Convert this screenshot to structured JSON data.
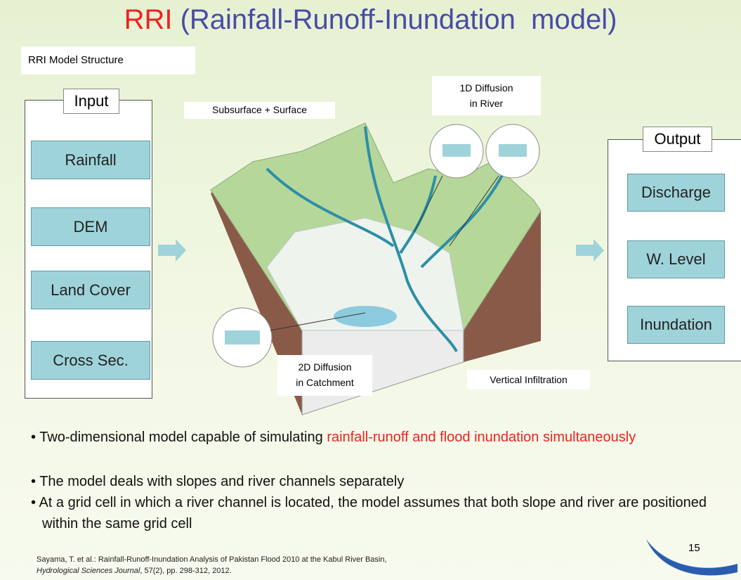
{
  "title": {
    "acronym": "RRI",
    "rest": "(Rainfall-Runoff-Inundation  model)"
  },
  "structure_label": "RRI Model Structure",
  "input": {
    "label": "Input",
    "items": [
      "Rainfall",
      "DEM",
      "Land Cover",
      "Cross Sec."
    ]
  },
  "output": {
    "label": "Output",
    "items": [
      "Discharge",
      "W. Level",
      "Inundation"
    ]
  },
  "diagram": {
    "surface": "Subsurface + Surface",
    "river": [
      "1D Diffusion",
      "in River"
    ],
    "catchment": [
      "2D Diffusion",
      "in Catchment"
    ],
    "infiltration": "Vertical Infiltration"
  },
  "bullets": [
    {
      "text": "Two-dimensional model capable of simulating",
      "highlight": "rainfall-runoff and flood inundation simultaneously"
    },
    {
      "text": "The model deals with slopes and river channels separately"
    },
    {
      "text": "At a grid cell in which a river channel is located, the model assumes that both slope and river are positioned within the same grid cell"
    }
  ],
  "reference": {
    "line1": "Sayama, T. et al.: Rainfall-Runoff-Inundation Analysis of Pakistan Flood 2010 at the Kabul River Basin,",
    "journal": "Hydrological Sciences Journal",
    "details": ", 57(2), pp. 298-312, 2012."
  },
  "page_number": "15"
}
